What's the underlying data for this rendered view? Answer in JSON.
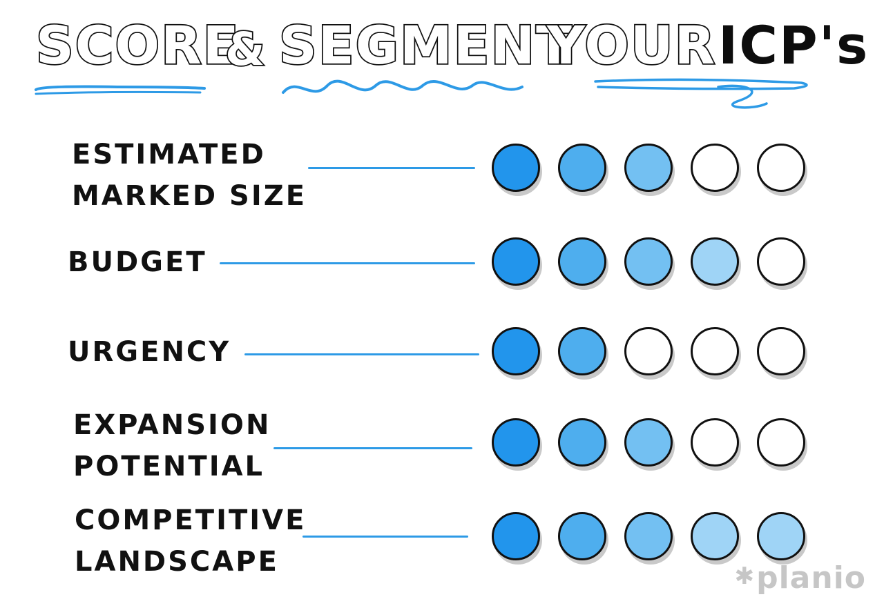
{
  "title": {
    "words": [
      "SCORE",
      "&",
      "SEGMENT",
      "YOUR",
      "ICP's"
    ]
  },
  "criteria": [
    {
      "label_lines": [
        "ESTIMATED",
        "MARKED SIZE"
      ],
      "score": 3
    },
    {
      "label_lines": [
        "BUDGET"
      ],
      "score": 4
    },
    {
      "label_lines": [
        "URGENCY"
      ],
      "score": 2
    },
    {
      "label_lines": [
        "EXPANSION",
        "POTENTIAL"
      ],
      "score": 3
    },
    {
      "label_lines": [
        "COMPETITIVE",
        "LANDSCAPE"
      ],
      "score": 5
    }
  ],
  "scale_max": 5,
  "colors": {
    "accent": "#2d9ae6",
    "dot_strong": "#2295ec",
    "dot_light": "#9fd4f6",
    "outline": "#111111",
    "logo": "#c6c6c6"
  },
  "logo": {
    "icon": "asterisk-icon",
    "text": "planio"
  }
}
